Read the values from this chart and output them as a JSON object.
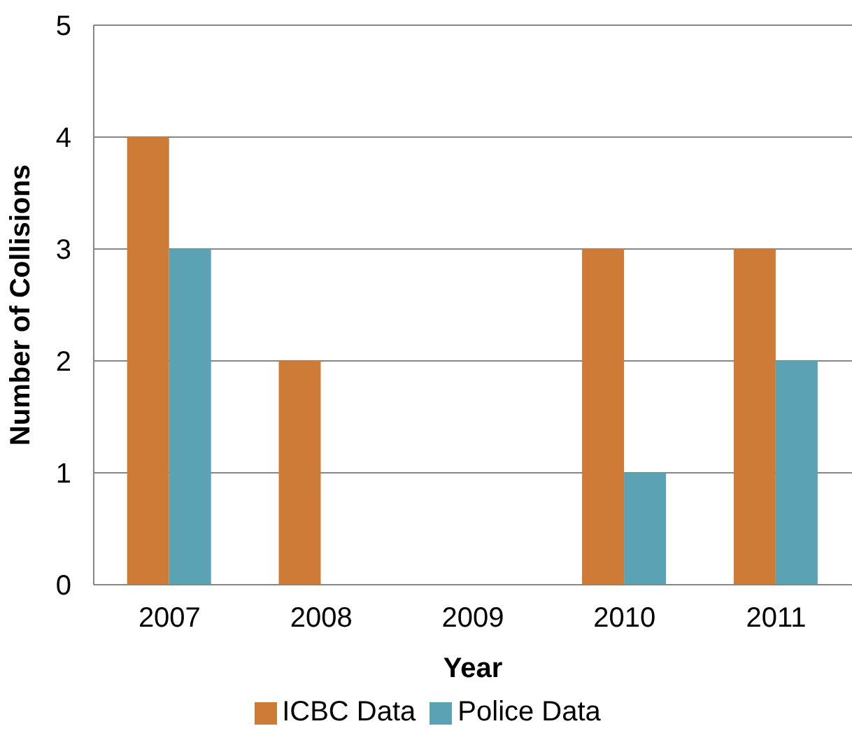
{
  "chart_data": {
    "type": "bar",
    "xlabel": "Year",
    "ylabel": "Number of Collisions",
    "categories": [
      "2007",
      "2008",
      "2009",
      "2010",
      "2011"
    ],
    "series": [
      {
        "name": "ICBC Data",
        "color": "#cd7b37",
        "values": [
          4,
          2,
          0,
          3,
          3
        ]
      },
      {
        "name": "Police Data",
        "color": "#5ba3b4",
        "values": [
          3,
          0,
          0,
          1,
          2
        ]
      }
    ],
    "ylim": [
      0,
      5
    ],
    "yticks": [
      0,
      1,
      2,
      3,
      4,
      5
    ],
    "grid": "y",
    "legend": "bottom"
  }
}
